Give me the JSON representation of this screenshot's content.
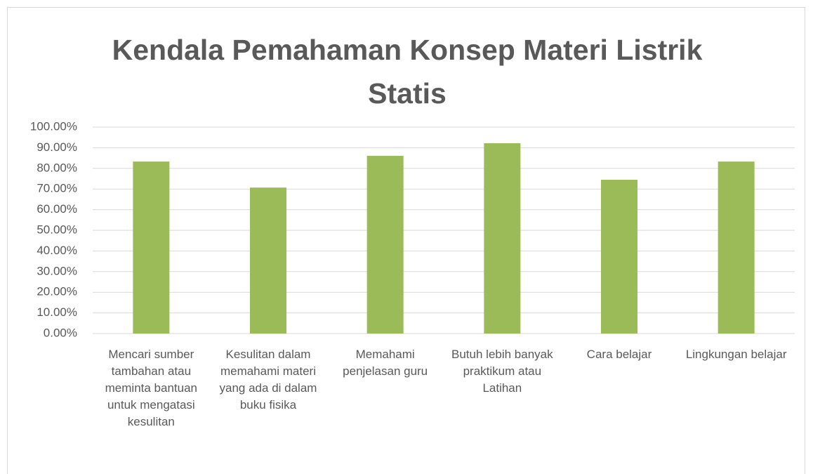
{
  "chart_data": {
    "type": "bar",
    "title": "Kendala Pemahaman Konsep Materi Listrik Statis",
    "categories": [
      "Mencari sumber tambahan atau meminta bantuan untuk mengatasi kesulitan",
      "Kesulitan dalam memahami materi yang ada di dalam buku fisika",
      "Memahami penjelasan guru",
      "Butuh lebih banyak praktikum atau Latihan",
      "Cara belajar",
      "Lingkungan belajar"
    ],
    "values": [
      83.3,
      70.7,
      86.1,
      92.2,
      74.5,
      83.3
    ],
    "color": "#9bbb59",
    "ylim": [
      0,
      100
    ],
    "yticks": [
      {
        "value": 0,
        "label": "0.00%"
      },
      {
        "value": 10,
        "label": "10.00%"
      },
      {
        "value": 20,
        "label": "20.00%"
      },
      {
        "value": 30,
        "label": "30.00%"
      },
      {
        "value": 40,
        "label": "40.00%"
      },
      {
        "value": 50,
        "label": "50.00%"
      },
      {
        "value": 60,
        "label": "60.00%"
      },
      {
        "value": 70,
        "label": "70.00%"
      },
      {
        "value": 80,
        "label": "80.00%"
      },
      {
        "value": 90,
        "label": "90.00%"
      },
      {
        "value": 100,
        "label": "100.00%"
      }
    ],
    "grid": true
  }
}
